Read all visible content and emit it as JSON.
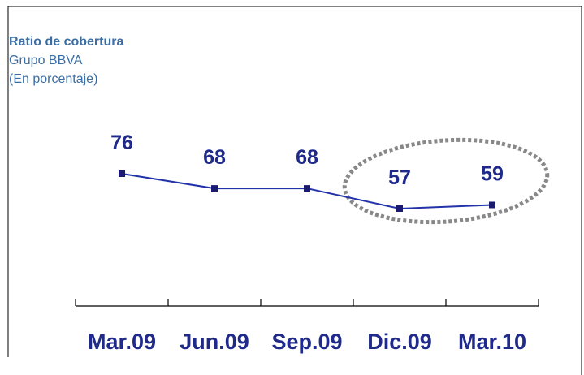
{
  "chart_data": {
    "type": "line",
    "title": "Ratio de cobertura",
    "subtitle": "Grupo BBVA",
    "unit_note": "(En porcentaje)",
    "categories": [
      "Mar.09",
      "Jun.09",
      "Sep.09",
      "Dic.09",
      "Mar.10"
    ],
    "values": [
      76,
      68,
      68,
      57,
      59
    ],
    "color": "#2233aa"
  }
}
